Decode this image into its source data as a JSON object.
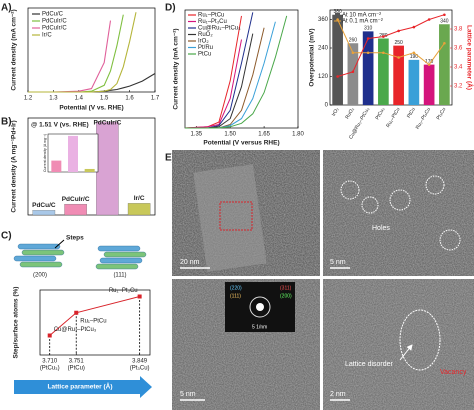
{
  "panels": {
    "A": {
      "label": "A)",
      "type": "line",
      "xlabel": "Potential (V vs. RHE)",
      "ylabel": "Current density (mA cm⁻²)",
      "xlim": [
        1.2,
        1.7
      ],
      "xticks": [
        1.2,
        1.3,
        1.4,
        1.5,
        1.6,
        1.7
      ],
      "ylim": [
        0,
        100
      ],
      "x": [
        1.2,
        1.3,
        1.4,
        1.45,
        1.5,
        1.525,
        1.55,
        1.575,
        1.6,
        1.625,
        1.65,
        1.7
      ],
      "series": [
        {
          "name": "PdCu/C",
          "color": "#333333",
          "values": [
            0,
            0,
            0,
            0,
            1,
            2,
            3,
            5,
            7,
            10,
            13,
            22
          ]
        },
        {
          "name": "PdCuIr/C",
          "color": "#7fbf3f",
          "values": [
            0,
            0,
            0,
            1,
            8,
            25,
            55,
            92,
            null,
            null,
            null,
            null
          ]
        },
        {
          "name": "PdCuIr/C",
          "color": "#e0609a",
          "values": [
            0,
            0,
            1,
            4,
            35,
            85,
            null,
            null,
            null,
            null,
            null,
            null
          ]
        },
        {
          "name": "Ir/C",
          "color": "#b5b53a",
          "values": [
            0,
            0,
            0,
            0,
            1,
            3,
            10,
            30,
            60,
            95,
            null,
            null
          ]
        }
      ]
    },
    "B": {
      "label": "B)",
      "type": "bar",
      "annotation": "@ 1.51 V (vs. RHE)",
      "ylabel": "Current density (A mg⁻¹Pd+Ir)",
      "categories": [
        "PdCu/C",
        "PdCuIr/C",
        "PdCuIr/C",
        "Ir/C"
      ],
      "values": [
        0.06,
        0.14,
        1.2,
        0.15
      ],
      "colors": [
        "#a9c8e8",
        "#f08cb4",
        "#d9a3d3",
        "#c8c85a"
      ],
      "ylim": [
        0,
        1.25
      ],
      "inset": {
        "type": "bar",
        "ylabel": "Current density (A mg⁻¹)",
        "values": [
          0.3,
          0.95,
          0.08
        ],
        "colors": [
          "#f08cb4",
          "#eab1e3",
          "#c8c85a"
        ],
        "ylim": [
          0,
          1
        ]
      }
    },
    "C": {
      "label": "C)",
      "type": "line",
      "illustration": {
        "pointer": "Steps",
        "facets": [
          "(200)",
          "(111)"
        ]
      },
      "ylabel": "Step/surface atoms (%)",
      "xlabel": "Lattice parameter (Å)",
      "x": [
        3.71,
        3.751,
        3.849
      ],
      "values": [
        6,
        13,
        18
      ],
      "color": "#d8232a",
      "point_labels": [
        "Cu@Ru₁–PtCu₃",
        "Ru₁–PtCu",
        "Ru₁–Pt₃Cu"
      ],
      "xlim": [
        3.695,
        3.865
      ],
      "ylim": [
        0,
        20
      ],
      "xticks": [
        {
          "value": 3.71,
          "label": "3.710"
        },
        {
          "value": 3.751,
          "label": "3.751"
        },
        {
          "value": 3.849,
          "label": "3.849"
        }
      ],
      "xtick_sublabels": [
        "(PtCu₃)",
        "(PtCu)",
        "(Pt₃Cu)"
      ]
    },
    "D": {
      "label": "D)",
      "left": {
        "type": "line",
        "xlabel": "Potential (V versus RHE)",
        "ylabel": "Current density (mA cm⁻²)",
        "xlim": [
          1.3,
          1.8
        ],
        "ylim": [
          0,
          100
        ],
        "xticks": [
          {
            "value": 1.35,
            "label": "1.35"
          },
          {
            "value": 1.5,
            "label": "1.50"
          },
          {
            "value": 1.65,
            "label": "1.65"
          },
          {
            "value": 1.8,
            "label": "1.80"
          }
        ],
        "x": [
          1.3,
          1.4,
          1.45,
          1.5,
          1.55,
          1.6,
          1.65,
          1.7,
          1.75,
          1.8
        ],
        "series": [
          {
            "name": "Ru₁–PtCu",
            "color": "#e8252a",
            "values": [
              0,
              1,
              5,
              40,
              95,
              null,
              null,
              null,
              null,
              null
            ]
          },
          {
            "name": "Ru₁–Pt₃Cu",
            "color": "#d4147c",
            "values": [
              0,
              1,
              3,
              25,
              75,
              null,
              null,
              null,
              null,
              null
            ]
          },
          {
            "name": "Cu@Ru₁–PtCu₃",
            "color": "#1f2f8c",
            "values": [
              0,
              0,
              2,
              15,
              55,
              98,
              null,
              null,
              null,
              null
            ]
          },
          {
            "name": "RuO₂",
            "color": "#333333",
            "values": [
              0,
              0,
              1,
              8,
              35,
              80,
              null,
              null,
              null,
              null
            ]
          },
          {
            "name": "IrO₂",
            "color": "#8c5a2b",
            "values": [
              0,
              0,
              0,
              3,
              15,
              45,
              85,
              null,
              null,
              null
            ]
          },
          {
            "name": "Pt/Ru",
            "color": "#3aa0d8",
            "values": [
              0,
              0,
              0,
              2,
              8,
              25,
              55,
              90,
              null,
              null
            ]
          },
          {
            "name": "PtCu",
            "color": "#4aa84a",
            "values": [
              0,
              0,
              0,
              1,
              4,
              12,
              30,
              60,
              95,
              null
            ]
          }
        ]
      },
      "right": {
        "type": "bar",
        "ylabel": "Overpotential (mV)",
        "y2label": "Lattice parameter (Å)",
        "categories": [
          "IrO₂",
          "RuO₂",
          "Cu@Ru₁–PtCu₃",
          "PtCu₃",
          "Ru₁–PtCu",
          "PtCu",
          "Ru₁–Pt₃Cu",
          "Pt₃Cu"
        ],
        "ylim": [
          0,
          400
        ],
        "yticks": [
          0,
          120,
          240,
          360
        ],
        "y2lim": [
          3.0,
          4.0
        ],
        "y2ticks": [
          3.2,
          3.4,
          3.6,
          3.8
        ],
        "bars": {
          "name": "At 10 mA cm⁻²",
          "colors": [
            "#555555",
            "#8c8c8c",
            "#1f2f8c",
            "#4aa84a",
            "#e8252a",
            "#3aa0d8",
            "#d4147c",
            "#6aa84f"
          ],
          "values": [
            380,
            260,
            310,
            280,
            250,
            190,
            170,
            340
          ]
        },
        "line": {
          "name": "At 0.1 mA cm⁻²",
          "color": "#e8a23a",
          "values": [
            360,
            220,
            220,
            220,
            200,
            220,
            170,
            260
          ]
        },
        "lattice": {
          "color": "#e8252a",
          "axis": "y2",
          "values": [
            3.3,
            3.35,
            3.7,
            3.72,
            3.78,
            3.82,
            3.9,
            3.95
          ]
        }
      }
    },
    "E": {
      "label": "E)",
      "images": [
        {
          "scale": "20 nm"
        },
        {
          "scale": "5 nm",
          "annotation": "Holes"
        },
        {
          "scale": "5 nm",
          "inset_scale": "5 1/nm",
          "planes": [
            "(220)",
            "(111)",
            "(311)",
            "(200)"
          ]
        },
        {
          "scale": "2 nm",
          "annotations": [
            "Lattice disorder",
            "Vacancy"
          ]
        }
      ]
    }
  }
}
